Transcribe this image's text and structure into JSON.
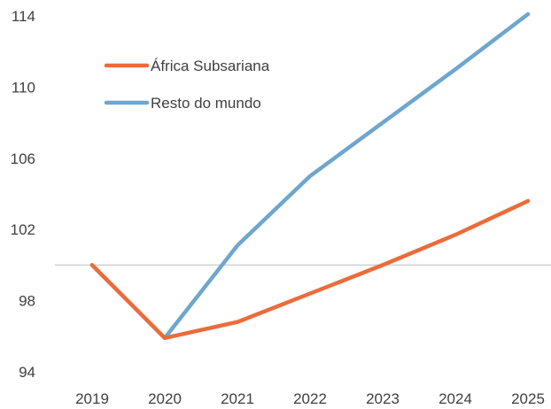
{
  "chart_data": {
    "type": "line",
    "x": [
      "2019",
      "2020",
      "2021",
      "2022",
      "2023",
      "2024",
      "2025"
    ],
    "series": [
      {
        "name": "África Subsariana",
        "color": "#ED6B3A",
        "values": [
          100,
          95.9,
          96.8,
          98.4,
          100.0,
          101.7,
          103.6
        ]
      },
      {
        "name": "Resto do mundo",
        "color": "#6FA6CF",
        "values": [
          100,
          95.9,
          101.1,
          105.0,
          108.0,
          111.0,
          114.1
        ]
      }
    ],
    "ylim": [
      94,
      114
    ],
    "yticks": [
      94,
      98,
      102,
      106,
      110,
      114
    ],
    "reference_line": {
      "y": 100,
      "color": "#D0D0D0"
    },
    "legend_position": "top-left",
    "grid": false,
    "title": "",
    "xlabel": "",
    "ylabel": ""
  }
}
